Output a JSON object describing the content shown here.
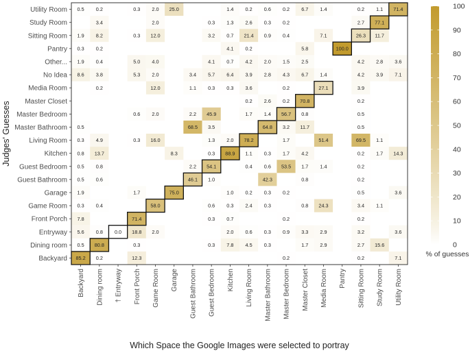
{
  "chart_data": {
    "type": "heatmap",
    "xlabel": "Which Space the Google Images were selected to portray",
    "ylabel": "Judges' Guesses",
    "x_categories": [
      "Backyard",
      "Dining room",
      "Entryway",
      "Front Porch",
      "Game Room",
      "Garage",
      "Guest Bathroom",
      "Guest Bedroom",
      "Kitchen",
      "Living Room",
      "Master Bathroom",
      "Master Bedroom",
      "Master Closet",
      "Media Room",
      "Pantry",
      "Sitting Room",
      "Study Room",
      "Utility Room"
    ],
    "x_marker": {
      "index": 2,
      "symbol": "†"
    },
    "y_categories": [
      "Utility Room",
      "Study Room",
      "Sitting Room",
      "Pantry",
      "Other...",
      "No Idea",
      "Media Room",
      "Master Closet",
      "Master Bedroom",
      "Master Bathroom",
      "Living Room",
      "Kitchen",
      "Guest Bedroom",
      "Guest Bathroom",
      "Garage",
      "Game Room",
      "Front Porch",
      "Entryway",
      "Dining room",
      "Backyard"
    ],
    "values": [
      [
        "0.5",
        "0.2",
        "",
        "0.3",
        "2.0",
        "25.0",
        "",
        "",
        "1.4",
        "0.2",
        "0.6",
        "0.2",
        "6.7",
        "1.4",
        "",
        "0.2",
        "1.1",
        "71.4"
      ],
      [
        "",
        "3.4",
        "",
        "",
        "2.0",
        "",
        "",
        "0.3",
        "1.3",
        "2.6",
        "0.3",
        "0.2",
        "",
        "",
        "",
        "2.7",
        "77.1",
        ""
      ],
      [
        "1.9",
        "8.2",
        "",
        "0.3",
        "12.0",
        "",
        "",
        "3.2",
        "0.7",
        "21.4",
        "0.9",
        "0.4",
        "",
        "7.1",
        "",
        "26.3",
        "11.7",
        ""
      ],
      [
        "0.3",
        "0.2",
        "",
        "",
        "",
        "",
        "",
        "",
        "4.1",
        "0.2",
        "",
        "",
        "5.8",
        "",
        "100.0",
        "",
        "",
        ""
      ],
      [
        "1.9",
        "0.4",
        "",
        "5.0",
        "4.0",
        "",
        "",
        "4.1",
        "0.7",
        "4.2",
        "2.0",
        "1.5",
        "2.5",
        "",
        "",
        "4.2",
        "2.8",
        "3.6"
      ],
      [
        "8.6",
        "3.8",
        "",
        "5.3",
        "2.0",
        "",
        "3.4",
        "5.7",
        "6.4",
        "3.9",
        "2.8",
        "4.3",
        "6.7",
        "1.4",
        "",
        "4.2",
        "3.9",
        "7.1"
      ],
      [
        "",
        "0.2",
        "",
        "",
        "12.0",
        "",
        "1.1",
        "0.3",
        "0.3",
        "3.6",
        "",
        "0.2",
        "",
        "27.1",
        "",
        "3.9",
        "",
        ""
      ],
      [
        "",
        "",
        "",
        "",
        "",
        "",
        "",
        "",
        "",
        "0.2",
        "2.6",
        "0.2",
        "70.8",
        "",
        "",
        "0.2",
        "",
        ""
      ],
      [
        "",
        "",
        "",
        "0.6",
        "2.0",
        "",
        "2.2",
        "45.9",
        "",
        "1.7",
        "1.4",
        "56.7",
        "0.8",
        "",
        "",
        "0.5",
        "",
        ""
      ],
      [
        "0.5",
        "",
        "",
        "",
        "",
        "",
        "68.5",
        "3.5",
        "",
        "",
        "64.8",
        "3.2",
        "11.7",
        "",
        "",
        "0.5",
        "",
        ""
      ],
      [
        "0.3",
        "4.9",
        "",
        "0.3",
        "16.0",
        "",
        "",
        "1.3",
        "2.0",
        "78.2",
        "",
        "1.7",
        "",
        "51.4",
        "",
        "69.5",
        "1.1",
        ""
      ],
      [
        "0.8",
        "13.7",
        "",
        "",
        "",
        "8.3",
        "",
        "0.3",
        "88.9",
        "1.1",
        "0.3",
        "1.7",
        "4.2",
        "",
        "",
        "0.2",
        "1.7",
        "14.3"
      ],
      [
        "0.5",
        "0.8",
        "",
        "",
        "",
        "",
        "2.2",
        "54.1",
        "",
        "0.4",
        "0.6",
        "53.5",
        "1.7",
        "1.4",
        "",
        "0.2",
        "",
        ""
      ],
      [
        "0.5",
        "0.6",
        "",
        "",
        "",
        "",
        "46.1",
        "1.0",
        "",
        "",
        "42.3",
        "",
        "0.8",
        "",
        "",
        "0.2",
        "",
        ""
      ],
      [
        "1.9",
        "",
        "",
        "1.7",
        "",
        "75.0",
        "",
        "",
        "1.0",
        "0.2",
        "0.3",
        "0.2",
        "",
        "",
        "",
        "0.5",
        "",
        "3.6"
      ],
      [
        "0.3",
        "0.4",
        "",
        "",
        "58.0",
        "",
        "",
        "0.6",
        "0.3",
        "2.4",
        "0.3",
        "",
        "0.8",
        "24.3",
        "",
        "3.4",
        "1.1",
        ""
      ],
      [
        "7.8",
        "",
        "",
        "71.4",
        "",
        "",
        "",
        "0.3",
        "0.7",
        "",
        "",
        "0.2",
        "",
        "",
        "",
        "0.2",
        "",
        ""
      ],
      [
        "5.6",
        "0.8",
        "0.0",
        "18.8",
        "2.0",
        "",
        "",
        "",
        "2.0",
        "0.6",
        "0.3",
        "0.9",
        "3.3",
        "2.9",
        "",
        "3.2",
        "",
        "3.6"
      ],
      [
        "0.5",
        "80.8",
        "",
        "0.3",
        "",
        "",
        "",
        "0.3",
        "7.8",
        "4.5",
        "0.3",
        "",
        "1.7",
        "2.9",
        "",
        "2.7",
        "15.6",
        ""
      ],
      [
        "85.2",
        "0.2",
        "",
        "12.3",
        "",
        "",
        "",
        "",
        "",
        "",
        "",
        "0.2",
        "",
        "",
        "",
        "0.2",
        "",
        "7.1"
      ]
    ],
    "diagonal_boxes": [
      {
        "row": "Backyard",
        "col": "Backyard"
      },
      {
        "row": "Dining room",
        "col": "Dining room"
      },
      {
        "row": "Entryway",
        "col": "Entryway"
      },
      {
        "row": "Front Porch",
        "col": "Front Porch"
      },
      {
        "row": "Game Room",
        "col": "Game Room"
      },
      {
        "row": "Garage",
        "col": "Garage"
      },
      {
        "row": "Guest Bathroom",
        "col": "Guest Bathroom"
      },
      {
        "row": "Guest Bedroom",
        "col": "Guest Bedroom"
      },
      {
        "row": "Kitchen",
        "col": "Kitchen"
      },
      {
        "row": "Living Room",
        "col": "Living Room"
      },
      {
        "row": "Master Bathroom",
        "col": "Master Bathroom"
      },
      {
        "row": "Master Bedroom",
        "col": "Master Bedroom"
      },
      {
        "row": "Master Closet",
        "col": "Master Closet"
      },
      {
        "row": "Media Room",
        "col": "Media Room"
      },
      {
        "row": "Pantry",
        "col": "Pantry"
      },
      {
        "row": "Sitting Room",
        "col": "Sitting Room"
      },
      {
        "row": "Study Room",
        "col": "Study Room"
      },
      {
        "row": "Utility Room",
        "col": "Utility Room"
      }
    ],
    "colorbar": {
      "title": "% of guesses",
      "ticks": [
        "0",
        "10",
        "20",
        "30",
        "40",
        "50",
        "60",
        "70",
        "80",
        "90",
        "100"
      ],
      "range": [
        0,
        100
      ],
      "low_color": "#ffffff",
      "high_color": "#c29b2e"
    }
  }
}
